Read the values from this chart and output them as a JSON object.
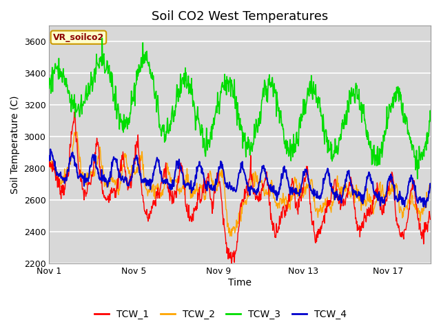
{
  "title": "Soil CO2 West Temperatures",
  "xlabel": "Time",
  "ylabel": "Soil Temperature (C)",
  "ylim": [
    2200,
    3700
  ],
  "yticks": [
    2200,
    2400,
    2600,
    2800,
    3000,
    3200,
    3400,
    3600
  ],
  "xtick_labels": [
    "Nov 1",
    "Nov 5",
    "Nov 9",
    "Nov 13",
    "Nov 17"
  ],
  "xtick_positions": [
    0,
    4,
    8,
    12,
    16
  ],
  "col_TCW_1": "#ff0000",
  "col_TCW_2": "#ffa500",
  "col_TCW_3": "#00dd00",
  "col_TCW_4": "#0000cc",
  "annotation_text": "VR_soilco2",
  "annotation_color": "#8b0000",
  "annotation_bg": "#ffffcc",
  "annotation_edge": "#cc9900",
  "plot_bg": "#d8d8d8",
  "grid_color": "#ffffff",
  "title_fontsize": 13,
  "axis_label_fontsize": 10,
  "tick_fontsize": 9,
  "legend_fontsize": 10
}
